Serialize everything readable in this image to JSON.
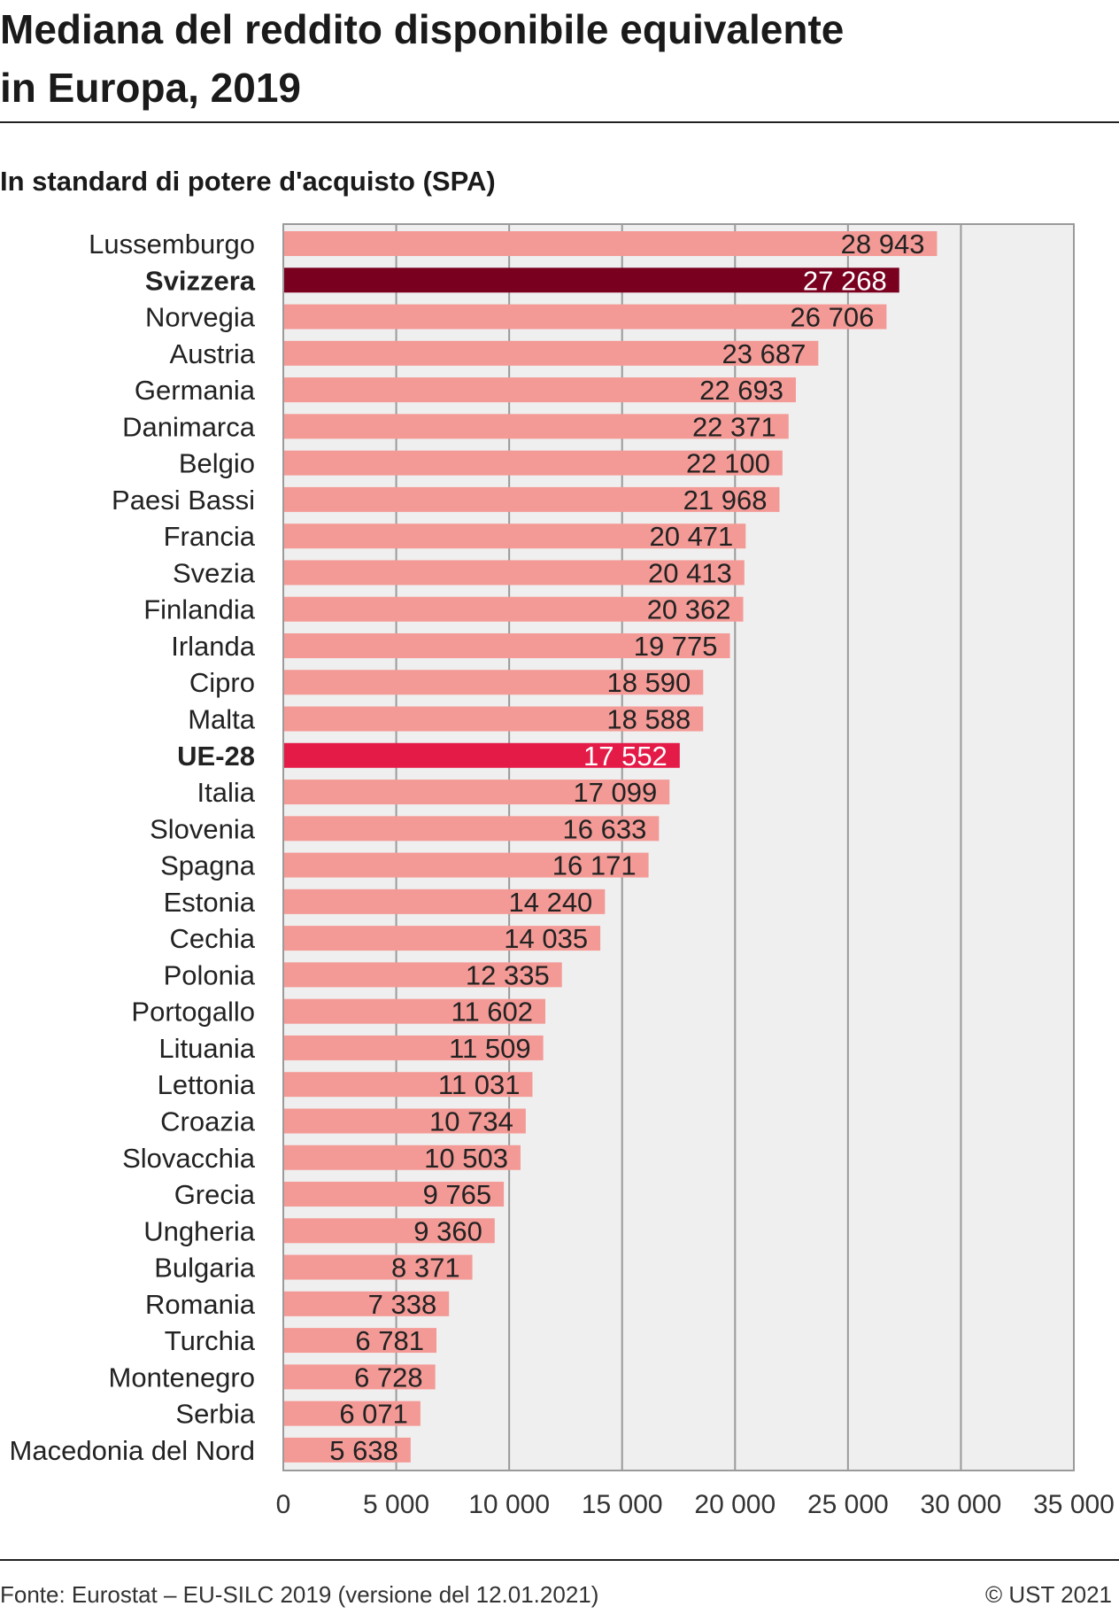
{
  "header": {
    "title_line1": "Mediana del reddito disponibile equivalente",
    "title_line2": "in Europa, 2019",
    "subtitle": "In standard di potere d'acquisto (SPA)"
  },
  "footer": {
    "source": "Fonte: Eurostat – EU-SILC 2019 (versione del 12.01.2021)",
    "copyright": "© UST 2021"
  },
  "colors": {
    "default_bar": "#f49a96",
    "highlight_switzerland": "#7a0020",
    "highlight_eu": "#e41b47",
    "plot_background": "#efefef",
    "gridline": "#9a9a9a"
  },
  "chart_data": {
    "type": "bar",
    "orientation": "horizontal",
    "title": "Mediana del reddito disponibile equivalente in Europa, 2019",
    "subtitle": "In standard di potere d'acquisto (SPA)",
    "xlabel": "",
    "ylabel": "",
    "xlim": [
      0,
      35000
    ],
    "xticks": [
      0,
      5000,
      10000,
      15000,
      20000,
      25000,
      30000,
      35000
    ],
    "xtick_labels": [
      "0",
      "5 000",
      "10 000",
      "15 000",
      "20 000",
      "25 000",
      "30 000",
      "35 000"
    ],
    "grid": "vertical",
    "legend": "none",
    "categories": [
      "Lussemburgo",
      "Svizzera",
      "Norvegia",
      "Austria",
      "Germania",
      "Danimarca",
      "Belgio",
      "Paesi Bassi",
      "Francia",
      "Svezia",
      "Finlandia",
      "Irlanda",
      "Cipro",
      "Malta",
      "UE-28",
      "Italia",
      "Slovenia",
      "Spagna",
      "Estonia",
      "Cechia",
      "Polonia",
      "Portogallo",
      "Lituania",
      "Lettonia",
      "Croazia",
      "Slovacchia",
      "Grecia",
      "Ungheria",
      "Bulgaria",
      "Romania",
      "Turchia",
      "Montenegro",
      "Serbia",
      "Macedonia del Nord"
    ],
    "values": [
      28943,
      27268,
      26706,
      23687,
      22693,
      22371,
      22100,
      21968,
      20471,
      20413,
      20362,
      19775,
      18590,
      18588,
      17552,
      17099,
      16633,
      16171,
      14240,
      14035,
      12335,
      11602,
      11509,
      11031,
      10734,
      10503,
      9765,
      9360,
      8371,
      7338,
      6781,
      6728,
      6071,
      5638
    ],
    "value_labels": [
      "28 943",
      "27 268",
      "26 706",
      "23 687",
      "22 693",
      "22 371",
      "22 100",
      "21 968",
      "20 471",
      "20 413",
      "20 362",
      "19 775",
      "18 590",
      "18 588",
      "17 552",
      "17 099",
      "16 633",
      "16 171",
      "14 240",
      "14 035",
      "12 335",
      "11 602",
      "11 509",
      "11 031",
      "10 734",
      "10 503",
      "9 765",
      "9 360",
      "8 371",
      "7 338",
      "6 781",
      "6 728",
      "6 071",
      "5 638"
    ],
    "highlighted": {
      "Svizzera": "highlight_switzerland",
      "UE-28": "highlight_eu"
    }
  }
}
